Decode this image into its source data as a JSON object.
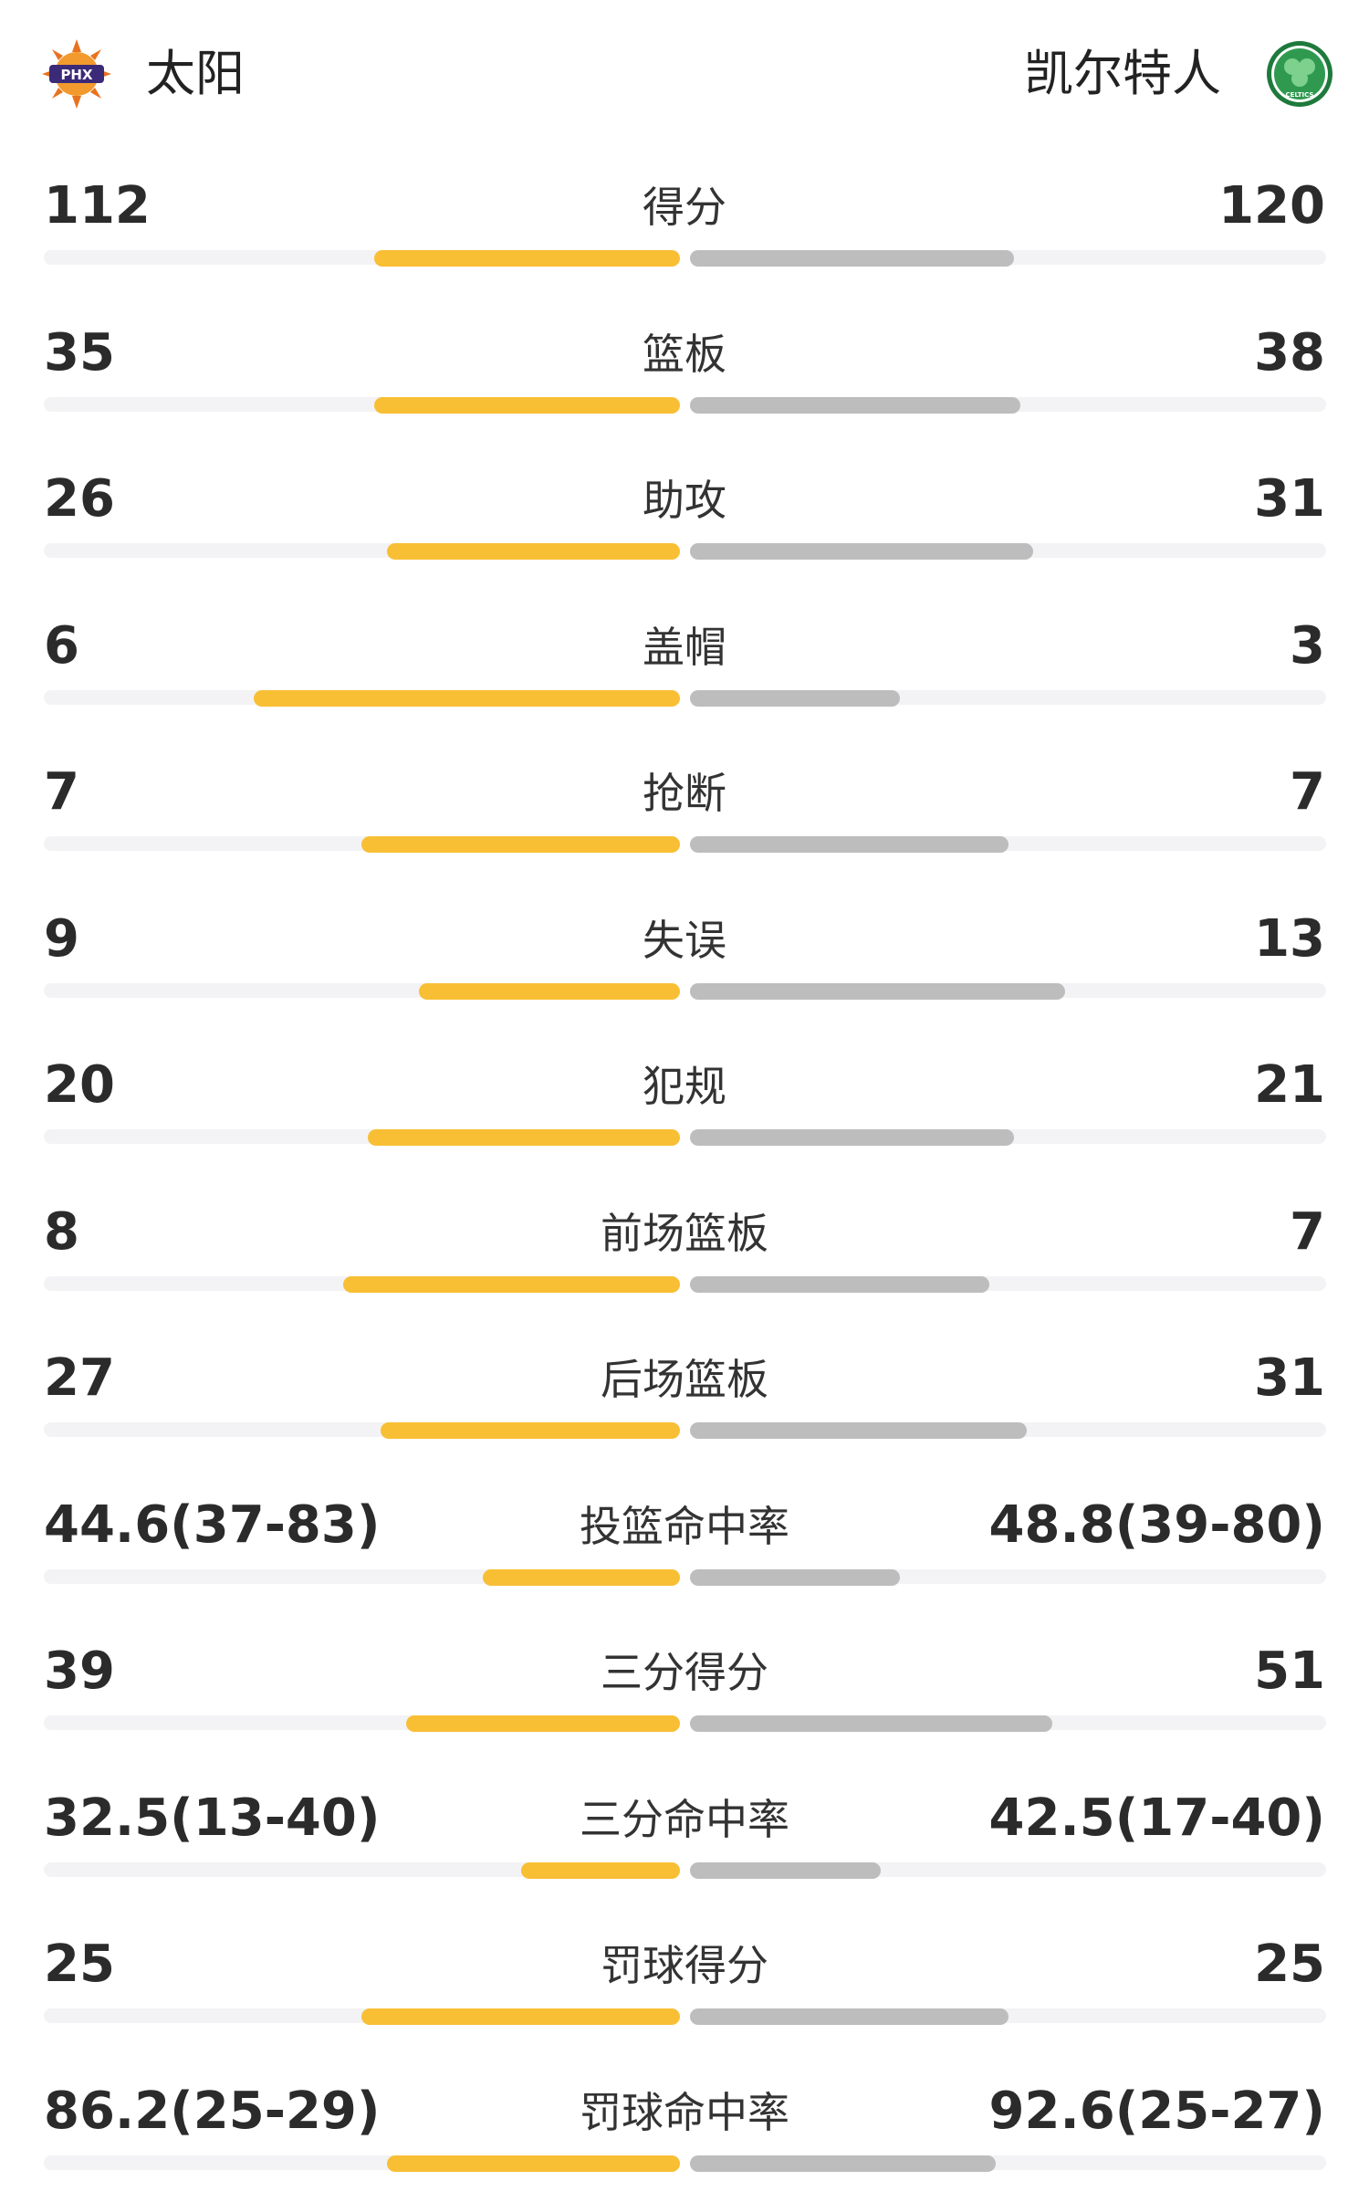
{
  "teams": {
    "home": {
      "name": "太阳",
      "logo_text": "PHX",
      "color": "#f8bf35"
    },
    "away": {
      "name": "凯尔特人",
      "logo_text": "CELTICS",
      "color": "#bdbdbd"
    }
  },
  "stats": [
    {
      "label": "得分",
      "home": "112",
      "away": "120",
      "home_fill": 0.48,
      "away_fill": 0.51
    },
    {
      "label": "篮板",
      "home": "35",
      "away": "38",
      "home_fill": 0.48,
      "away_fill": 0.52
    },
    {
      "label": "助攻",
      "home": "26",
      "away": "31",
      "home_fill": 0.46,
      "away_fill": 0.54
    },
    {
      "label": "盖帽",
      "home": "6",
      "away": "3",
      "home_fill": 0.67,
      "away_fill": 0.33
    },
    {
      "label": "抢断",
      "home": "7",
      "away": "7",
      "home_fill": 0.5,
      "away_fill": 0.5
    },
    {
      "label": "失误",
      "home": "9",
      "away": "13",
      "home_fill": 0.41,
      "away_fill": 0.59
    },
    {
      "label": "犯规",
      "home": "20",
      "away": "21",
      "home_fill": 0.49,
      "away_fill": 0.51
    },
    {
      "label": "前场篮板",
      "home": "8",
      "away": "7",
      "home_fill": 0.53,
      "away_fill": 0.47
    },
    {
      "label": "后场篮板",
      "home": "27",
      "away": "31",
      "home_fill": 0.47,
      "away_fill": 0.53
    },
    {
      "label": "投篮命中率",
      "home": "44.6(37-83)",
      "away": "48.8(39-80)",
      "home_fill": 0.31,
      "away_fill": 0.33
    },
    {
      "label": "三分得分",
      "home": "39",
      "away": "51",
      "home_fill": 0.43,
      "away_fill": 0.57
    },
    {
      "label": "三分命中率",
      "home": "32.5(13-40)",
      "away": "42.5(17-40)",
      "home_fill": 0.25,
      "away_fill": 0.3
    },
    {
      "label": "罚球得分",
      "home": "25",
      "away": "25",
      "home_fill": 0.5,
      "away_fill": 0.5
    },
    {
      "label": "罚球命中率",
      "home": "86.2(25-29)",
      "away": "92.6(25-27)",
      "home_fill": 0.46,
      "away_fill": 0.48
    }
  ]
}
